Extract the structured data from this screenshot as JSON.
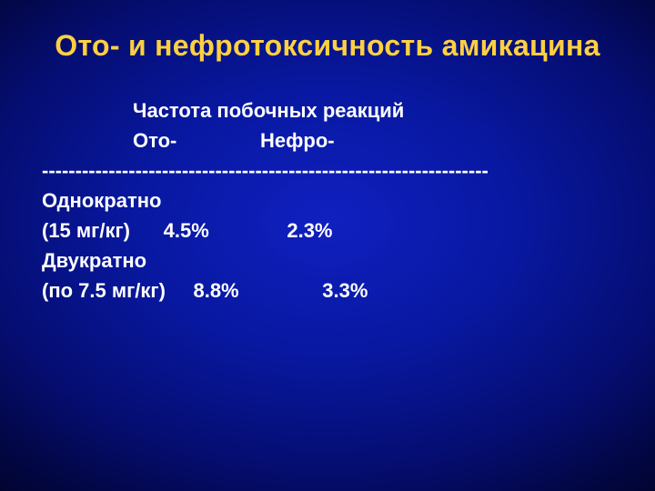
{
  "title": "Ото- и нефротоксичность амикацина",
  "header_line1": "Частота побочных реакций",
  "header_line2": "Ото-               Нефро-",
  "divider": "-------------------------------------------------------------------",
  "row1": "Однократно",
  "row2": "(15 мг/кг)      4.5%              2.3%",
  "row3": "Двукратно",
  "row4": "(по 7.5 мг/кг)     8.8%               3.3%",
  "colors": {
    "title": "#ffd040",
    "text": "#ffffff",
    "bg_center": "#1020c0",
    "bg_edge": "#010320"
  },
  "fontsizes": {
    "title": 32,
    "body": 22
  }
}
